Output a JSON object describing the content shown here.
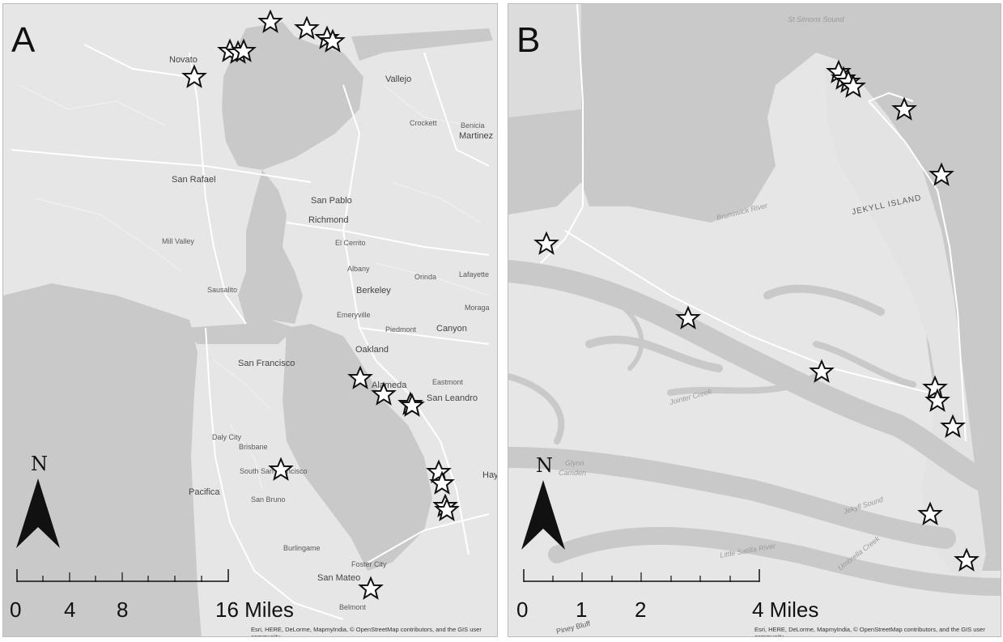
{
  "colors": {
    "land": "#e6e6e6",
    "water": "#c8c8c8",
    "road": "#ffffff",
    "marker_stroke": "#111111"
  },
  "icons": [
    "star-marker-icon",
    "north-arrow-icon"
  ],
  "panels": [
    {
      "letter": "A",
      "north": "N",
      "scale": {
        "ticks": [
          "0",
          "4",
          "8",
          "16 Miles"
        ]
      },
      "credit": "Esri, HERE, DeLorme, MapmyIndia, © OpenStreetMap contributors, and the GIS user community",
      "places": [
        "Novato",
        "Vallejo",
        "San Rafael",
        "San Pablo",
        "Richmond",
        "Berkeley",
        "Oakland",
        "San Francisco",
        "Alameda",
        "San Leandro",
        "Daly City",
        "South San Francisco",
        "San Bruno",
        "Pacifica",
        "San Mateo",
        "Canyon",
        "Martinez",
        "Crockett",
        "Benicia",
        "Orinda",
        "Lafayette",
        "Moraga",
        "Piedmont",
        "Emeryville",
        "Albany",
        "El Cerrito",
        "Sausalito",
        "Mill Valley",
        "Brisbane",
        "Burlingame",
        "Foster City",
        "Belmont",
        "Eastmont",
        "Hayward"
      ]
    },
    {
      "letter": "B",
      "north": "N",
      "scale": {
        "ticks": [
          "0",
          "1",
          "2",
          "4 Miles"
        ]
      },
      "credit": "Esri, HERE, DeLorme, MapmyIndia, © OpenStreetMap contributors, and the GIS user community",
      "places": [
        "St Simons Sound",
        "Brunswick River",
        "JEKYLL ISLAND",
        "Jointer Creek",
        "Glynn",
        "Camden",
        "Jekyll Sound",
        "Little Satilla River",
        "Umbrella Creek",
        "Piney Bluff"
      ]
    }
  ]
}
